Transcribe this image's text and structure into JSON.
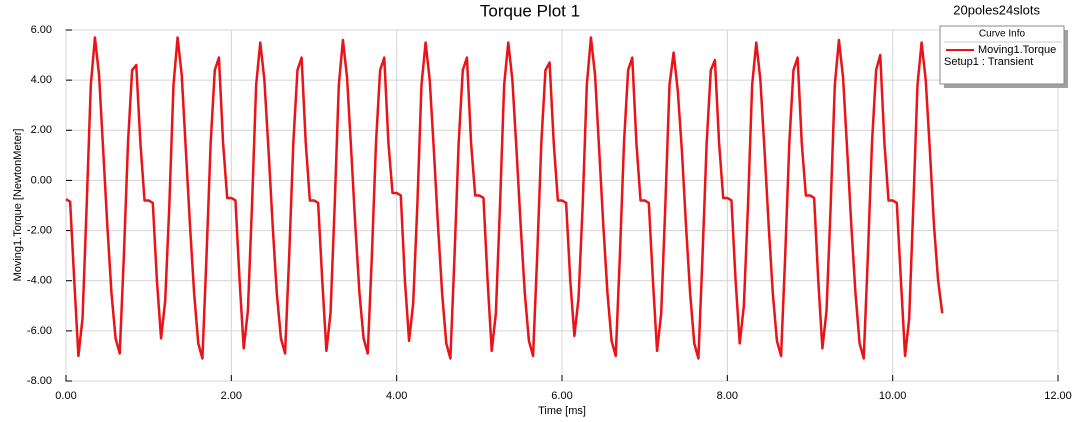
{
  "chart_data": {
    "type": "line",
    "title": "Torque Plot 1",
    "annotation": "20poles24slots",
    "x_label": "Time [ms]",
    "y_label": "Moving1.Torque [NewtonMeter]",
    "legend_title": "Curve Info",
    "legend": "top-right",
    "grid": true,
    "xlim": [
      0,
      12
    ],
    "ylim": [
      -8,
      6
    ],
    "xticks": [
      {
        "value": 0,
        "label": "0.00"
      },
      {
        "value": 2,
        "label": "2.00"
      },
      {
        "value": 4,
        "label": "4.00"
      },
      {
        "value": 6,
        "label": "6.00"
      },
      {
        "value": 8,
        "label": "8.00"
      },
      {
        "value": 10,
        "label": "10.00"
      },
      {
        "value": 12,
        "label": "12.00"
      }
    ],
    "yticks": [
      {
        "value": -8,
        "label": "-8.00"
      },
      {
        "value": -6,
        "label": "-6.00"
      },
      {
        "value": -4,
        "label": "-4.00"
      },
      {
        "value": -2,
        "label": "-2.00"
      },
      {
        "value": 0,
        "label": "0.00"
      },
      {
        "value": 2,
        "label": "2.00"
      },
      {
        "value": 4,
        "label": "4.00"
      },
      {
        "value": 6,
        "label": "6.00"
      }
    ],
    "x": [
      0,
      0.05,
      0.1,
      0.15,
      0.2,
      0.25,
      0.3,
      0.35,
      0.4,
      0.45,
      0.5,
      0.55,
      0.6,
      0.65,
      0.7,
      0.75,
      0.8,
      0.85,
      0.9,
      0.95,
      1,
      1.05,
      1.1,
      1.15,
      1.2,
      1.25,
      1.3,
      1.35,
      1.4,
      1.45,
      1.5,
      1.55,
      1.6,
      1.65,
      1.7,
      1.75,
      1.8,
      1.85,
      1.9,
      1.95,
      2,
      2.05,
      2.1,
      2.15,
      2.2,
      2.25,
      2.3,
      2.35,
      2.4,
      2.45,
      2.5,
      2.55,
      2.6,
      2.65,
      2.7,
      2.75,
      2.8,
      2.85,
      2.9,
      2.95,
      3,
      3.05,
      3.1,
      3.15,
      3.2,
      3.25,
      3.3,
      3.35,
      3.4,
      3.45,
      3.5,
      3.55,
      3.6,
      3.65,
      3.7,
      3.75,
      3.8,
      3.85,
      3.9,
      3.95,
      4,
      4.05,
      4.1,
      4.15,
      4.2,
      4.25,
      4.3,
      4.35,
      4.4,
      4.45,
      4.5,
      4.55,
      4.6,
      4.65,
      4.7,
      4.75,
      4.8,
      4.85,
      4.9,
      4.95,
      5,
      5.05,
      5.1,
      5.15,
      5.2,
      5.25,
      5.3,
      5.35,
      5.4,
      5.45,
      5.5,
      5.55,
      5.6,
      5.65,
      5.7,
      5.75,
      5.8,
      5.85,
      5.9,
      5.95,
      6,
      6.05,
      6.1,
      6.15,
      6.2,
      6.25,
      6.3,
      6.35,
      6.4,
      6.45,
      6.5,
      6.55,
      6.6,
      6.65,
      6.7,
      6.75,
      6.8,
      6.85,
      6.9,
      6.95,
      7,
      7.05,
      7.1,
      7.15,
      7.2,
      7.25,
      7.3,
      7.35,
      7.4,
      7.45,
      7.5,
      7.55,
      7.6,
      7.65,
      7.7,
      7.75,
      7.8,
      7.85,
      7.9,
      7.95,
      8,
      8.05,
      8.1,
      8.15,
      8.2,
      8.25,
      8.3,
      8.35,
      8.4,
      8.45,
      8.5,
      8.55,
      8.6,
      8.65,
      8.7,
      8.75,
      8.8,
      8.85,
      8.9,
      8.95,
      9,
      9.05,
      9.1,
      9.15,
      9.2,
      9.25,
      9.3,
      9.35,
      9.4,
      9.45,
      9.5,
      9.55,
      9.6,
      9.65,
      9.7,
      9.75,
      9.8,
      9.85,
      9.9,
      9.95,
      10,
      10.05,
      10.1,
      10.15,
      10.2,
      10.25,
      10.3,
      10.35,
      10.4,
      10.45,
      10.5,
      10.55,
      10.6
    ],
    "series": [
      {
        "name": "Moving1.Torque",
        "solution": "Setup1 : Transient",
        "color": "#e8141a",
        "values": [
          -0.75,
          -0.85,
          -4.0,
          -7.0,
          -5.5,
          -1.0,
          3.8,
          5.7,
          4.2,
          1.2,
          -1.8,
          -4.5,
          -6.3,
          -6.9,
          -3.0,
          1.5,
          4.4,
          4.6,
          1.5,
          -0.8,
          -0.8,
          -0.9,
          -4.0,
          -6.3,
          -4.8,
          -1.0,
          3.8,
          5.7,
          4.2,
          1.2,
          -1.8,
          -4.5,
          -6.5,
          -7.1,
          -3.0,
          1.5,
          4.4,
          4.9,
          1.5,
          -0.7,
          -0.7,
          -0.8,
          -4.0,
          -6.7,
          -5.2,
          -1.0,
          3.8,
          5.5,
          4.0,
          1.2,
          -1.8,
          -4.5,
          -6.3,
          -6.9,
          -3.0,
          1.5,
          4.4,
          4.9,
          1.5,
          -0.8,
          -0.8,
          -0.9,
          -4.0,
          -6.8,
          -5.3,
          -1.0,
          3.8,
          5.6,
          4.1,
          1.2,
          -1.8,
          -4.5,
          -6.3,
          -6.9,
          -3.0,
          1.5,
          4.4,
          4.9,
          1.5,
          -0.5,
          -0.5,
          -0.6,
          -4.0,
          -6.4,
          -4.9,
          -1.0,
          3.8,
          5.5,
          4.0,
          1.2,
          -1.8,
          -4.5,
          -6.5,
          -7.1,
          -3.0,
          1.5,
          4.4,
          4.9,
          1.5,
          -0.6,
          -0.6,
          -0.7,
          -4.0,
          -6.8,
          -5.3,
          -1.0,
          3.8,
          5.5,
          4.0,
          1.2,
          -1.8,
          -4.5,
          -6.4,
          -7.0,
          -3.0,
          1.5,
          4.4,
          4.7,
          1.5,
          -0.8,
          -0.8,
          -0.9,
          -4.0,
          -6.2,
          -4.7,
          -1.0,
          3.8,
          5.7,
          4.2,
          1.2,
          -1.8,
          -4.5,
          -6.4,
          -7.0,
          -3.0,
          1.5,
          4.4,
          4.9,
          1.5,
          -0.8,
          -0.8,
          -0.9,
          -4.0,
          -6.8,
          -5.3,
          -1.0,
          3.8,
          5.1,
          3.6,
          1.2,
          -1.8,
          -4.5,
          -6.5,
          -7.1,
          -3.0,
          1.5,
          4.4,
          4.8,
          1.5,
          -0.7,
          -0.7,
          -0.8,
          -4.0,
          -6.5,
          -5.0,
          -1.0,
          3.8,
          5.5,
          4.0,
          1.2,
          -1.8,
          -4.5,
          -6.4,
          -7.0,
          -3.0,
          1.5,
          4.4,
          4.9,
          1.5,
          -0.6,
          -0.6,
          -0.7,
          -4.0,
          -6.7,
          -5.2,
          -1.0,
          3.8,
          5.6,
          4.1,
          1.2,
          -1.8,
          -4.5,
          -6.5,
          -7.1,
          -3.0,
          1.5,
          4.4,
          5.0,
          1.5,
          -0.8,
          -0.8,
          -0.9,
          -4.0,
          -7.0,
          -5.5,
          -1.0,
          3.8,
          5.5,
          4.0,
          1.2,
          -1.8,
          -4.0,
          -5.3
        ]
      }
    ]
  }
}
